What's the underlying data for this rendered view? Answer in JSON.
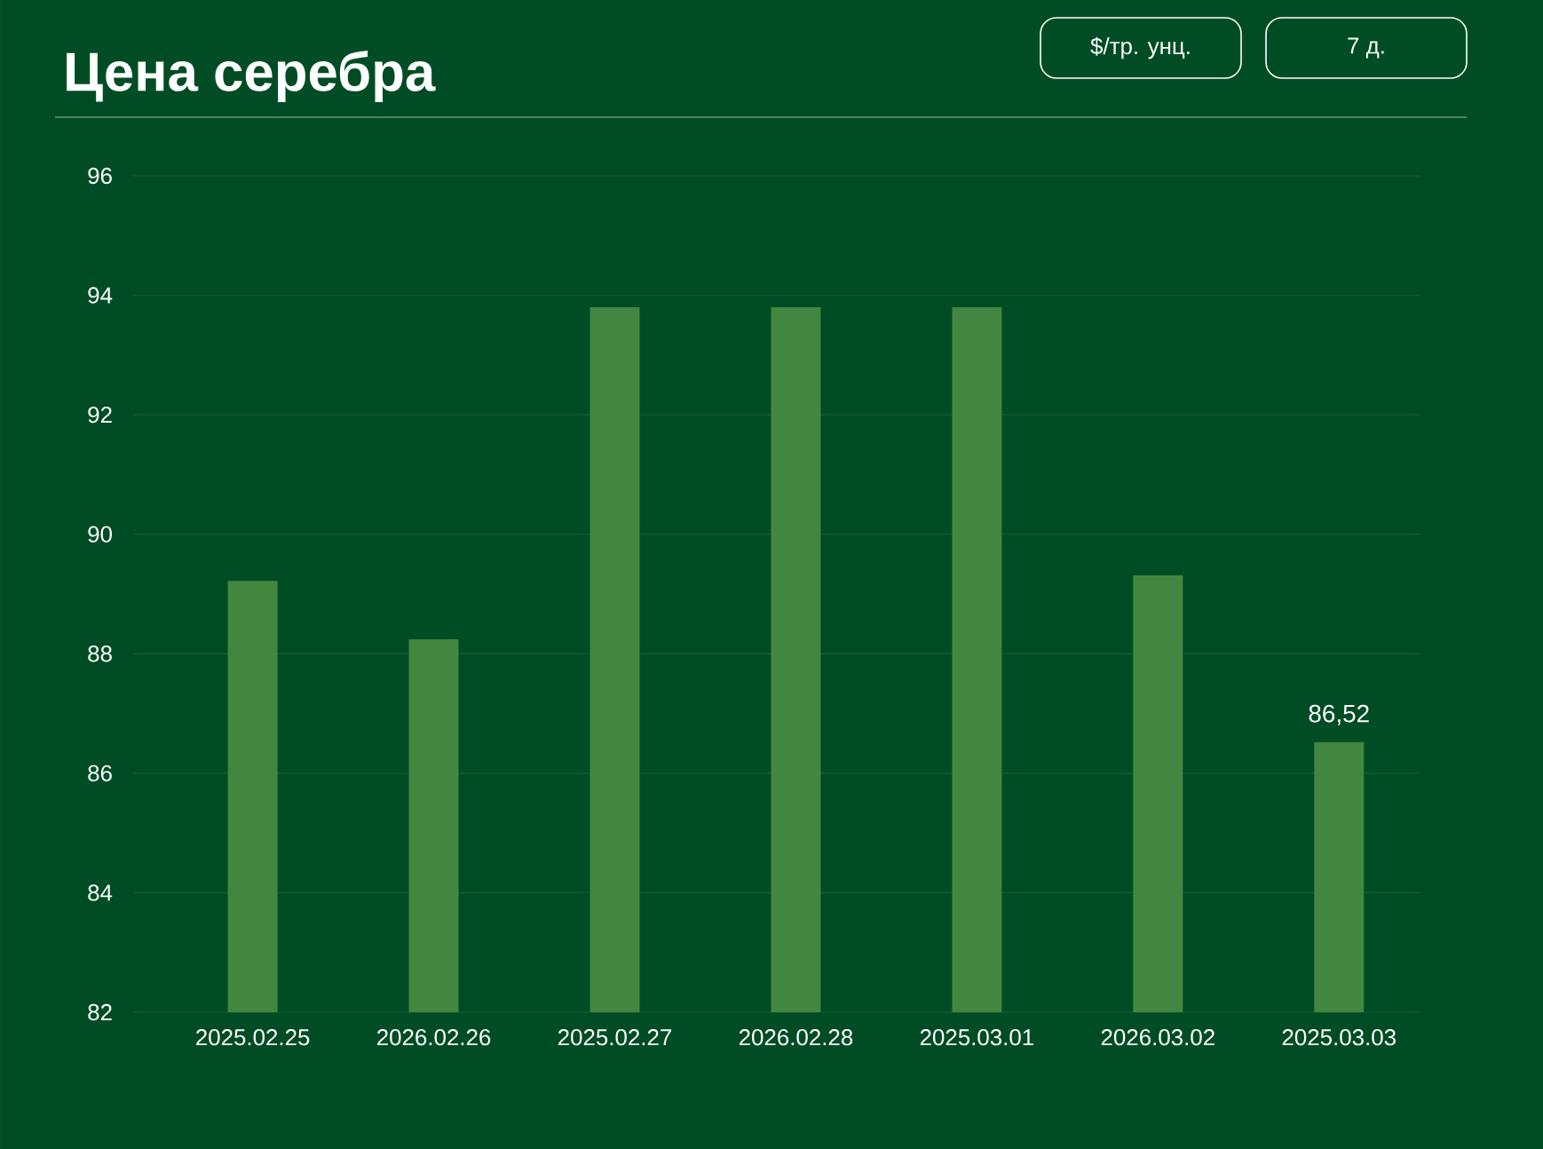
{
  "chart_data": {
    "type": "bar",
    "title": "Цена серебра",
    "categories": [
      "2025.02.25",
      "2026.02.26",
      "2025.02.27",
      "2026.02.28",
      "2025.03.01",
      "2026.03.02",
      "2025.03.03"
    ],
    "values": [
      89.22,
      88.24,
      93.8,
      93.8,
      93.8,
      89.31,
      86.52
    ],
    "value_labels": [
      null,
      null,
      null,
      null,
      null,
      null,
      "86,52"
    ],
    "color": "#43863f",
    "ylim": [
      82,
      96
    ],
    "yticks": [
      82,
      84,
      86,
      88,
      90,
      92,
      94,
      96
    ],
    "grid": "y",
    "annotations": [
      "$/тр. унц.",
      "7 д."
    ]
  }
}
